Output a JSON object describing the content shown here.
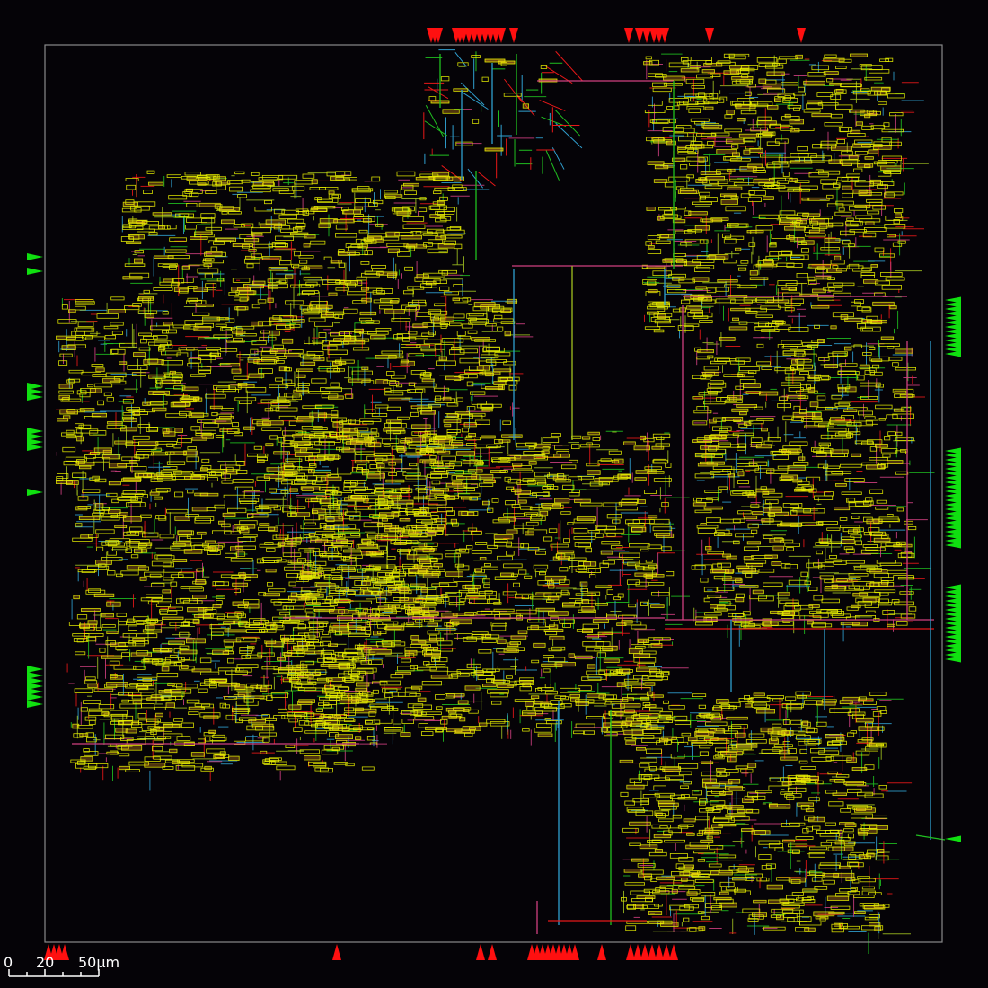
{
  "colors": {
    "background": "#050307",
    "die_outline": "#8a8a8a",
    "pin_vertical": "#ff1010",
    "pin_horizontal": "#10e010",
    "cell_outline": "#e8f000",
    "cell_fill_warm": "#f0a020",
    "metal1": "#e81818",
    "metal2": "#20c020",
    "metal3": "#30a0d0",
    "metal4": "#d04080",
    "metal5": "#a0c020",
    "scale_bar": "#ffffff"
  },
  "scale_bar": {
    "labels": [
      "0",
      "20",
      "50µm"
    ]
  },
  "legend_note": "",
  "blocks": [
    {
      "id": "cluster-top-left-strip"
    },
    {
      "id": "cluster-left-main"
    },
    {
      "id": "cluster-center"
    },
    {
      "id": "cluster-right-top"
    },
    {
      "id": "cluster-right-middle"
    },
    {
      "id": "cluster-right-bottom"
    },
    {
      "id": "cluster-top-column"
    }
  ]
}
